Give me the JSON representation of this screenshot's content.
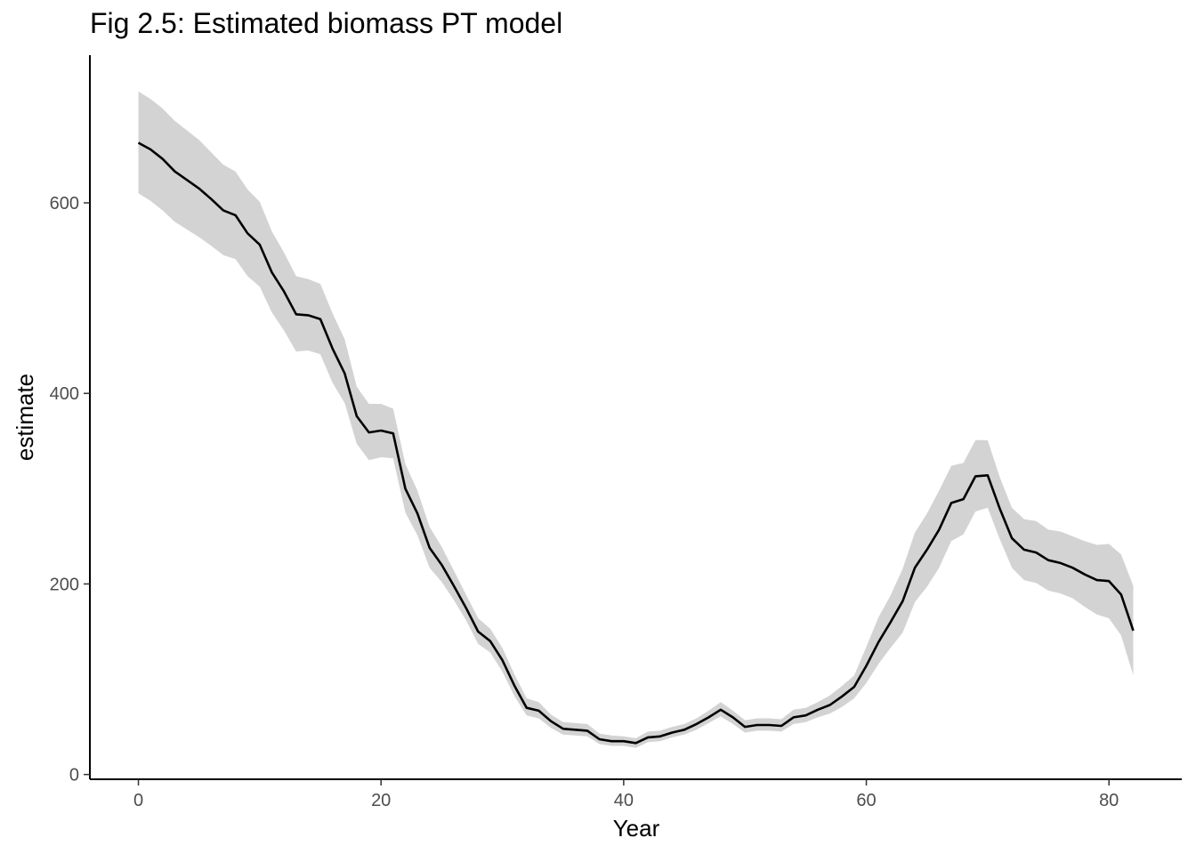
{
  "chart_data": {
    "type": "line",
    "title": "Fig 2.5: Estimated biomass PT model",
    "xlabel": "Year",
    "ylabel": "estimate",
    "xlim": [
      -4,
      86
    ],
    "ylim": [
      -5,
      755
    ],
    "xticks": [
      0,
      20,
      40,
      60,
      80
    ],
    "yticks": [
      0,
      200,
      400,
      600
    ],
    "grid": false,
    "legend": "none",
    "line_color": "#000000",
    "band_color": "#d3d3d3",
    "series": [
      {
        "x": [
          0,
          1,
          2,
          3,
          4,
          5,
          6,
          7,
          8,
          9,
          10,
          11,
          12,
          13,
          14,
          15,
          16,
          17,
          18,
          19,
          20,
          21,
          22,
          23,
          24,
          25,
          26,
          27,
          28,
          29,
          30,
          31,
          32,
          33,
          34,
          35,
          36,
          37,
          38,
          39,
          40,
          41,
          42,
          43,
          44,
          45,
          46,
          47,
          48,
          49,
          50,
          51,
          52,
          53,
          54,
          55,
          56,
          57,
          58,
          59,
          60,
          61,
          62,
          63,
          64,
          65,
          66,
          67,
          68,
          69,
          70,
          71,
          72,
          73,
          74,
          75,
          76,
          77,
          78,
          79,
          80,
          81,
          82
        ],
        "y": [
          663,
          656,
          646,
          633,
          624,
          615,
          604,
          592,
          587,
          568,
          556,
          527,
          507,
          483,
          482,
          478,
          447,
          421,
          376,
          359,
          361,
          358,
          300,
          274,
          238,
          220,
          198,
          175,
          150,
          140,
          120,
          93,
          70,
          67,
          56,
          48,
          47,
          46,
          37,
          35,
          35,
          33,
          39,
          40,
          44,
          47,
          53,
          60,
          68,
          60,
          50,
          52,
          52,
          51,
          60,
          62,
          68,
          73,
          82,
          92,
          114,
          139,
          160,
          182,
          217,
          236,
          257,
          285,
          289,
          313,
          314,
          279,
          248,
          236,
          233,
          225,
          222,
          217,
          210,
          204,
          203,
          189,
          151
        ],
        "lower": [
          610,
          602,
          592,
          580,
          572,
          564,
          555,
          545,
          541,
          523,
          512,
          485,
          466,
          444,
          445,
          441,
          411,
          390,
          347,
          330,
          333,
          332,
          275,
          251,
          217,
          202,
          183,
          162,
          137,
          128,
          108,
          82,
          62,
          59,
          49,
          42,
          41,
          40,
          32,
          30,
          30,
          28,
          34,
          35,
          39,
          42,
          47,
          54,
          61,
          53,
          44,
          46,
          46,
          45,
          53,
          55,
          60,
          64,
          71,
          80,
          96,
          116,
          133,
          149,
          181,
          197,
          217,
          245,
          252,
          276,
          280,
          247,
          217,
          204,
          201,
          193,
          190,
          185,
          176,
          168,
          164,
          146,
          104
        ],
        "upper": [
          717,
          709,
          699,
          686,
          676,
          666,
          653,
          640,
          633,
          614,
          601,
          570,
          548,
          523,
          520,
          515,
          484,
          457,
          407,
          389,
          389,
          384,
          326,
          298,
          260,
          239,
          214,
          189,
          164,
          153,
          133,
          105,
          80,
          76,
          63,
          55,
          54,
          53,
          43,
          41,
          40,
          38,
          45,
          46,
          50,
          53,
          59,
          67,
          76,
          67,
          57,
          59,
          59,
          58,
          68,
          70,
          76,
          83,
          93,
          104,
          134,
          165,
          188,
          216,
          254,
          274,
          298,
          324,
          327,
          351,
          351,
          312,
          280,
          268,
          266,
          257,
          255,
          250,
          245,
          241,
          242,
          231,
          198
        ]
      }
    ]
  }
}
